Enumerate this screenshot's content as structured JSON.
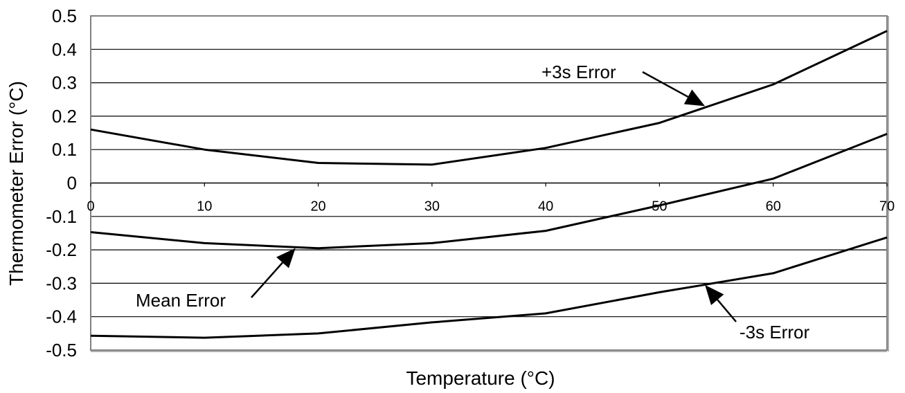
{
  "chart_data": {
    "type": "line",
    "xlabel": "Temperature (°C)",
    "ylabel": "Thermometer Error (°C)",
    "xlim": [
      0,
      70
    ],
    "ylim": [
      -0.5,
      0.5
    ],
    "x": [
      0,
      10,
      20,
      30,
      40,
      50,
      60,
      70
    ],
    "x_tick_labels": [
      "0",
      "10",
      "20",
      "30",
      "40",
      "50",
      "60",
      "70"
    ],
    "y_tick_labels": [
      "0.5",
      "0.4",
      "0.3",
      "0.2",
      "0.1",
      "0",
      "-0.1",
      "-0.2",
      "-0.3",
      "-0.4",
      "-0.5"
    ],
    "grid": "horizontal",
    "legend": "none",
    "series": [
      {
        "name": "+3s Error",
        "values": [
          0.16,
          0.1,
          0.06,
          0.055,
          0.105,
          0.18,
          0.295,
          0.455
        ]
      },
      {
        "name": "Mean Error",
        "values": [
          -0.147,
          -0.18,
          -0.195,
          -0.18,
          -0.143,
          -0.067,
          0.013,
          0.147
        ]
      },
      {
        "name": "-3s Error",
        "values": [
          -0.457,
          -0.463,
          -0.45,
          -0.417,
          -0.39,
          -0.327,
          -0.27,
          -0.163
        ]
      }
    ],
    "annotations": [
      {
        "text": "+3s Error",
        "series": "+3s Error",
        "x": 54,
        "y": 0.23
      },
      {
        "text": "Mean Error",
        "series": "Mean Error",
        "x": 18,
        "y": -0.195
      },
      {
        "text": "-3s Error",
        "series": "-3s Error",
        "x": 54,
        "y": -0.305
      }
    ],
    "colors": {
      "line": "#000000",
      "grid": "#000000",
      "frame": "#808080"
    }
  }
}
